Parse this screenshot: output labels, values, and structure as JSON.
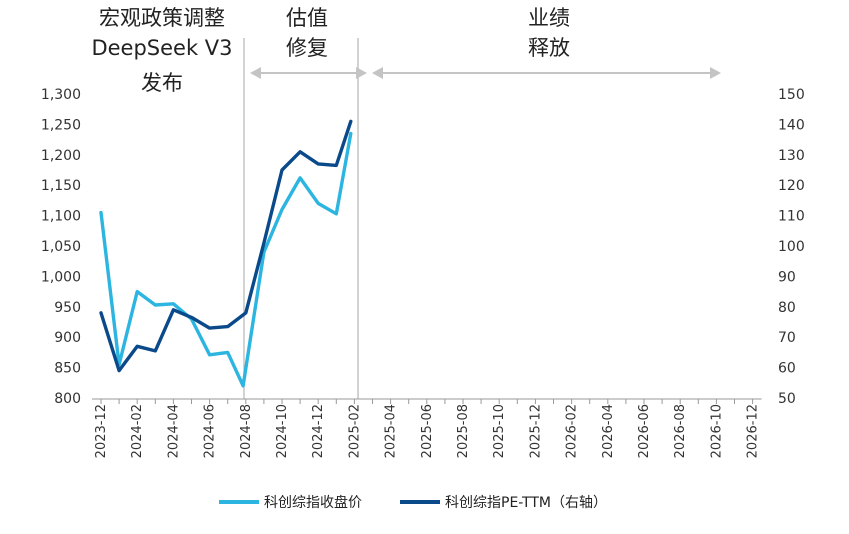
{
  "chart_data": {
    "type": "line",
    "title": "",
    "xlabel": "",
    "ylabel": "",
    "categories": [
      "2023-12",
      "2024-01",
      "2024-02",
      "2024-03",
      "2024-04",
      "2024-05",
      "2024-06",
      "2024-07",
      "2024-08",
      "2024-09",
      "2024-10",
      "2024-11",
      "2024-12",
      "2025-01",
      "2025-02",
      "2025-03",
      "2025-04",
      "2025-05",
      "2025-06",
      "2025-07",
      "2025-08",
      "2025-09",
      "2025-10",
      "2025-11",
      "2025-12",
      "2026-01",
      "2026-02",
      "2026-03",
      "2026-04",
      "2026-05",
      "2026-06",
      "2026-07",
      "2026-08",
      "2026-09",
      "2026-10",
      "2026-11",
      "2026-12"
    ],
    "x_tick_labels": [
      "2023-12",
      "2024-02",
      "2024-04",
      "2024-06",
      "2024-08",
      "2024-10",
      "2024-12",
      "2025-02",
      "2025-04",
      "2025-06",
      "2025-08",
      "2025-10",
      "2025-12",
      "2026-02",
      "2026-04",
      "2026-06",
      "2026-08",
      "2026-10",
      "2026-12"
    ],
    "y_left": {
      "ylim": [
        800,
        1300
      ],
      "ticks": [
        "800",
        "850",
        "900",
        "950",
        "1,000",
        "1,050",
        "1,100",
        "1,150",
        "1,200",
        "1,250",
        "1,300"
      ]
    },
    "y_right": {
      "ylim": [
        50,
        150
      ],
      "ticks": [
        "50",
        "60",
        "70",
        "80",
        "90",
        "100",
        "110",
        "120",
        "130",
        "140",
        "150"
      ]
    },
    "series": [
      {
        "name": "科创综指收盘价",
        "axis": "left",
        "color": "#2bb5e0",
        "x": [
          0,
          1,
          2,
          3,
          4,
          5,
          6,
          7,
          7.85,
          9,
          10,
          11,
          12,
          13,
          13.8
        ],
        "values": [
          1105,
          855,
          975,
          953,
          955,
          930,
          871,
          875,
          820,
          1040,
          1110,
          1162,
          1120,
          1103,
          1235
        ]
      },
      {
        "name": "科创综指PE-TTM（右轴）",
        "axis": "right",
        "color": "#0b4a8a",
        "x": [
          0,
          1,
          2,
          3,
          4,
          5,
          6,
          7,
          8,
          9,
          10,
          11,
          12,
          13,
          13.8
        ],
        "values": [
          78,
          59,
          67,
          65.5,
          79,
          76.5,
          73,
          73.5,
          78,
          101,
          125,
          131,
          127,
          126.5,
          141
        ]
      }
    ],
    "annotations": [
      {
        "lines": [
          "宏观政策调整",
          "DeepSeek V3",
          "发布"
        ]
      },
      {
        "lines": [
          "估值",
          "修复"
        ]
      },
      {
        "lines": [
          "业绩",
          "释放"
        ]
      }
    ],
    "phase_dividers_at": [
      7.9,
      14.2
    ],
    "legend_position": "bottom",
    "grid": false
  }
}
